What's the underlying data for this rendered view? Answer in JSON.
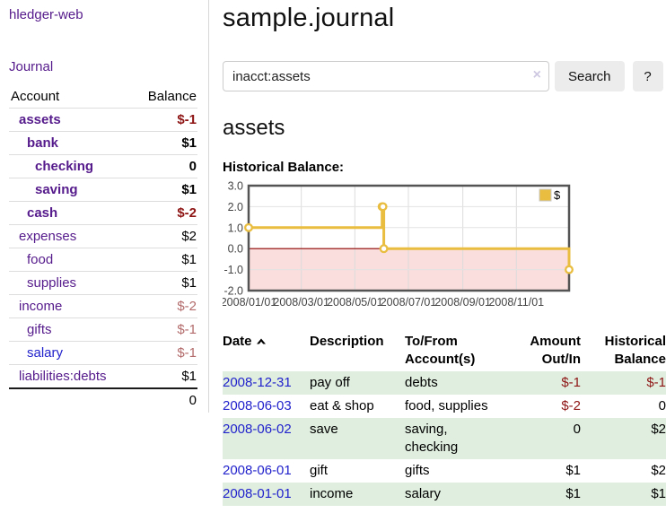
{
  "colors": {
    "purple_link": "#551a8b",
    "blue_link": "#2222cc",
    "negative_strong": "#8e1414",
    "negative_muted": "#b36b6b",
    "row_green": "#dfeedf",
    "chart_gold": "#e9bd3f",
    "chart_border": "#545454"
  },
  "sidebar": {
    "app_title": "hledger-web",
    "journal_label": "Journal",
    "account_header": "Account",
    "balance_header": "Balance",
    "accounts": [
      {
        "name": "assets",
        "indent": 1,
        "bold": true,
        "balance": "$-1",
        "neg": "strong"
      },
      {
        "name": "bank",
        "indent": 2,
        "bold": true,
        "balance": "$1"
      },
      {
        "name": "checking",
        "indent": 3,
        "bold": true,
        "balance": "0"
      },
      {
        "name": "saving",
        "indent": 3,
        "bold": true,
        "balance": "$1"
      },
      {
        "name": "cash",
        "indent": 2,
        "bold": true,
        "balance": "$-2",
        "neg": "strong"
      },
      {
        "name": "expenses",
        "indent": 1,
        "bold": false,
        "balance": "$2"
      },
      {
        "name": "food",
        "indent": 2,
        "bold": false,
        "balance": "$1"
      },
      {
        "name": "supplies",
        "indent": 2,
        "bold": false,
        "balance": "$1"
      },
      {
        "name": "income",
        "indent": 1,
        "bold": false,
        "balance": "$-2",
        "neg": "muted"
      },
      {
        "name": "gifts",
        "indent": 2,
        "bold": false,
        "balance": "$-1",
        "neg": "muted"
      },
      {
        "name": "salary",
        "indent": 2,
        "bold": false,
        "balance": "$-1",
        "neg": "muted",
        "link": "blue"
      },
      {
        "name": "liabilities:debts",
        "indent": 1,
        "bold": false,
        "balance": "$1"
      }
    ],
    "total_balance": "0"
  },
  "main": {
    "title": "sample.journal",
    "account_heading": "assets",
    "chart_label": "Historical Balance:"
  },
  "search": {
    "value": "inacct:assets",
    "clear_icon": "×",
    "button_label": "Search",
    "help_label": "?"
  },
  "chart_data": {
    "type": "line",
    "steps": true,
    "title": "Historical Balance",
    "series": [
      {
        "name": "$",
        "points": [
          [
            "2008-01-01",
            1
          ],
          [
            "2008-06-01",
            2
          ],
          [
            "2008-06-02",
            2
          ],
          [
            "2008-06-03",
            0
          ],
          [
            "2008-12-31",
            -1
          ]
        ]
      }
    ],
    "xlim": [
      "2008-01-01",
      "2008-12-31"
    ],
    "ylim": [
      -2,
      3
    ],
    "yticks": [
      3.0,
      2.0,
      1.0,
      0.0,
      -1.0,
      -2.0
    ],
    "xticks": [
      "2008/01/01",
      "2008/03/01",
      "2008/05/01",
      "2008/07/01",
      "2008/09/01",
      "2008/11/01"
    ],
    "legend_position": "top-right",
    "grid": true,
    "zero_line_color": "#8b0000",
    "negative_region_color": "#fadddd"
  },
  "register": {
    "headers": {
      "date": "Date",
      "description": "Description",
      "accounts": "To/From Account(s)",
      "amount": "Amount Out/In",
      "balance": "Historical Balance"
    },
    "rows": [
      {
        "date": "2008-12-31",
        "description": "pay off",
        "accounts": "debts",
        "amount": "$-1",
        "amount_neg": true,
        "balance": "$-1",
        "balance_neg": true
      },
      {
        "date": "2008-06-03",
        "description": "eat & shop",
        "accounts": "food, supplies",
        "amount": "$-2",
        "amount_neg": true,
        "balance": "0",
        "balance_neg": false
      },
      {
        "date": "2008-06-02",
        "description": "save",
        "accounts": "saving, checking",
        "amount": "0",
        "amount_neg": false,
        "balance": "$2",
        "balance_neg": false
      },
      {
        "date": "2008-06-01",
        "description": "gift",
        "accounts": "gifts",
        "amount": "$1",
        "amount_neg": false,
        "balance": "$2",
        "balance_neg": false
      },
      {
        "date": "2008-01-01",
        "description": "income",
        "accounts": "salary",
        "amount": "$1",
        "amount_neg": false,
        "balance": "$1",
        "balance_neg": false
      }
    ]
  }
}
